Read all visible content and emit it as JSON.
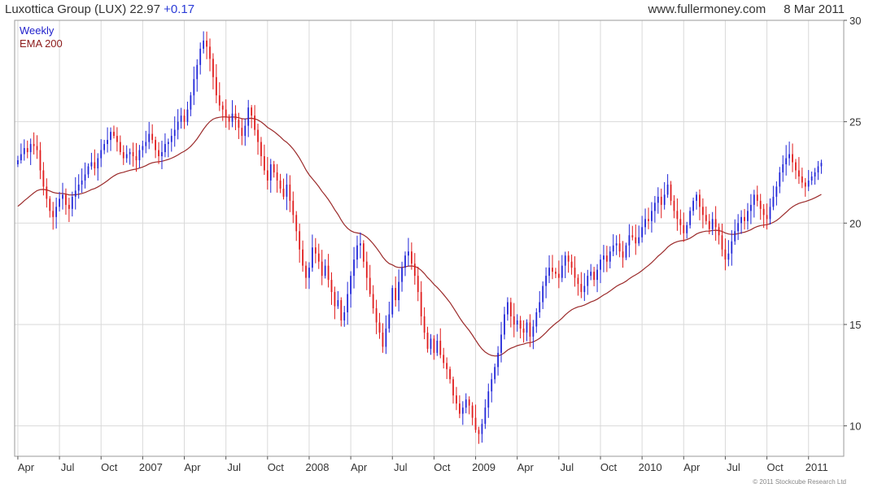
{
  "header": {
    "title": "Luxottica Group (LUX)",
    "price": "22.97",
    "change": "+0.17",
    "site": "www.fullermoney.com",
    "date": "8 Mar 2011"
  },
  "legend": {
    "weekly": "Weekly",
    "ema": "EMA 200"
  },
  "footer": {
    "copyright": "© 2011 Stockcube Research Ltd"
  },
  "colors": {
    "up": "#1f25d8",
    "down": "#e01b1b",
    "ema": "#9b2a2a",
    "grid": "#d9d9d9",
    "frame": "#9a9a9a"
  },
  "chart_data": {
    "type": "candlestick",
    "ylim": [
      8.5,
      30
    ],
    "y_ticks": [
      10,
      15,
      20,
      25,
      30
    ],
    "x_ticks": [
      {
        "label": "Apr",
        "week": 0
      },
      {
        "label": "Jul",
        "week": 13
      },
      {
        "label": "Oct",
        "week": 26
      },
      {
        "label": "2007",
        "week": 39
      },
      {
        "label": "Apr",
        "week": 52
      },
      {
        "label": "Jul",
        "week": 65
      },
      {
        "label": "Oct",
        "week": 78
      },
      {
        "label": "2008",
        "week": 91
      },
      {
        "label": "Apr",
        "week": 104
      },
      {
        "label": "Jul",
        "week": 117
      },
      {
        "label": "Oct",
        "week": 130
      },
      {
        "label": "2009",
        "week": 143
      },
      {
        "label": "Apr",
        "week": 156
      },
      {
        "label": "Jul",
        "week": 169
      },
      {
        "label": "Oct",
        "week": 182
      },
      {
        "label": "2010",
        "week": 195
      },
      {
        "label": "Apr",
        "week": 208
      },
      {
        "label": "Jul",
        "week": 221
      },
      {
        "label": "Oct",
        "week": 234
      },
      {
        "label": "2011",
        "week": 247
      }
    ],
    "week_range": [
      -1,
      258
    ],
    "grid": true,
    "series": [
      {
        "name": "Weekly",
        "close": [
          23.1,
          23.4,
          23.7,
          23.5,
          23.9,
          23.8,
          23.6,
          22.6,
          21.8,
          21.2,
          20.6,
          20.3,
          20.8,
          21.2,
          21.4,
          20.9,
          20.7,
          21.3,
          21.6,
          21.9,
          22.1,
          22.4,
          22.8,
          23.0,
          22.7,
          23.2,
          23.6,
          23.9,
          24.1,
          24.5,
          24.3,
          24.0,
          23.5,
          23.2,
          23.4,
          23.5,
          23.3,
          23.1,
          23.6,
          23.8,
          24.0,
          24.4,
          24.1,
          23.6,
          23.3,
          23.5,
          23.9,
          24.0,
          24.3,
          24.6,
          25.0,
          25.3,
          25.0,
          25.6,
          26.3,
          27.1,
          27.8,
          28.6,
          29.0,
          28.7,
          28.1,
          27.2,
          26.3,
          25.8,
          25.6,
          25.2,
          25.0,
          25.4,
          25.1,
          24.7,
          24.3,
          24.8,
          25.7,
          25.3,
          24.6,
          24.0,
          23.3,
          22.6,
          22.1,
          22.9,
          22.5,
          22.1,
          21.7,
          21.3,
          21.9,
          21.1,
          20.4,
          19.6,
          18.7,
          17.9,
          17.3,
          17.8,
          18.8,
          18.5,
          18.1,
          17.4,
          17.9,
          17.2,
          16.6,
          15.9,
          16.2,
          15.2,
          15.6,
          16.5,
          17.4,
          18.2,
          18.9,
          19.0,
          18.1,
          17.3,
          16.5,
          15.8,
          15.1,
          14.6,
          13.9,
          14.8,
          15.5,
          16.8,
          16.2,
          17.1,
          17.8,
          18.4,
          18.6,
          18.0,
          17.4,
          16.6,
          15.4,
          14.6,
          13.8,
          14.3,
          13.6,
          14.2,
          13.5,
          13.1,
          12.8,
          12.3,
          11.5,
          11.1,
          10.6,
          10.9,
          11.3,
          11.0,
          10.4,
          9.8,
          9.6,
          10.1,
          10.9,
          11.7,
          12.3,
          12.9,
          13.6,
          14.5,
          15.5,
          16.1,
          15.4,
          15.0,
          15.2,
          14.8,
          14.6,
          15.1,
          14.4,
          14.9,
          15.6,
          16.1,
          16.9,
          17.4,
          17.8,
          17.6,
          17.5,
          17.3,
          17.9,
          18.4,
          18.1,
          17.8,
          17.3,
          17.0,
          16.6,
          16.9,
          17.4,
          17.6,
          17.2,
          17.7,
          18.2,
          18.4,
          18.1,
          18.6,
          18.9,
          19.0,
          18.6,
          18.3,
          18.9,
          19.4,
          19.3,
          19.0,
          19.3,
          19.8,
          20.2,
          20.1,
          20.6,
          21.0,
          21.3,
          20.9,
          21.4,
          21.9,
          21.1,
          20.6,
          20.2,
          19.9,
          19.5,
          19.9,
          20.6,
          21.1,
          21.4,
          20.8,
          20.4,
          20.1,
          19.7,
          20.2,
          19.8,
          19.4,
          18.7,
          18.2,
          18.5,
          19.1,
          19.6,
          20.0,
          20.3,
          20.1,
          20.6,
          20.9,
          21.4,
          21.1,
          20.7,
          20.4,
          20.2,
          20.8,
          21.3,
          21.8,
          22.5,
          22.9,
          23.2,
          23.4,
          23.0,
          22.6,
          22.3,
          22.0,
          21.8,
          22.1,
          22.3,
          22.5,
          22.8,
          22.97
        ]
      },
      {
        "name": "EMA 200",
        "start": 20.7,
        "alpha": 0.052
      }
    ]
  }
}
